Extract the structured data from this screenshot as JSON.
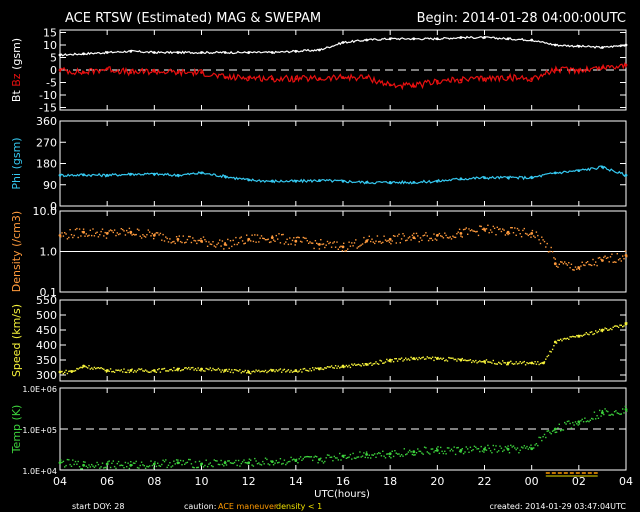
{
  "header": {
    "title": "ACE RTSW (Estimated) MAG & SWEPAM",
    "begin": "Begin: 2014-01-28 04:00:00UTC"
  },
  "footer": {
    "start_doy": "start DOY:  28",
    "caution_label": "caution:",
    "caution_ace": "ACE maneuver",
    "caution_density": "density < 1",
    "created": "created: 2014-01-29 03:47:04UTC",
    "xlabel": "UTC(hours)"
  },
  "colors": {
    "bt": "#ffffff",
    "bz": "#e81010",
    "phi": "#35c8f0",
    "density": "#ff9a3c",
    "speed": "#f6f23a",
    "temp": "#3cd23c",
    "axis": "#ffffff",
    "caution_orange": "#ff9a00",
    "caution_yellow": "#f0e000"
  },
  "chart_data": [
    {
      "type": "line",
      "panel": "mag",
      "ylabel_parts": [
        "Bt",
        " Bz",
        " (gsm)"
      ],
      "ylim": [
        -16,
        16
      ],
      "yticks": [
        -15,
        -10,
        -5,
        0,
        5,
        10,
        15
      ],
      "ytick_labels": [
        "-15",
        "-10",
        "-5",
        "0",
        "5",
        "10",
        "15"
      ],
      "zero_dash": 0,
      "series": [
        {
          "name": "Bt",
          "x": [
            0,
            1,
            2,
            3,
            4,
            5,
            6,
            7,
            8,
            9,
            10,
            11,
            12,
            13,
            14,
            15,
            16,
            17,
            18,
            19,
            20,
            21,
            22,
            23,
            24
          ],
          "values": [
            6,
            6.5,
            7,
            7.5,
            7,
            7,
            7,
            7,
            7,
            7,
            7.5,
            8,
            11,
            12,
            12.5,
            12.5,
            12.5,
            13,
            13,
            12.5,
            12,
            10,
            9.5,
            9,
            10
          ]
        },
        {
          "name": "Bz",
          "x": [
            0,
            1,
            2,
            3,
            4,
            5,
            6,
            7,
            8,
            9,
            10,
            11,
            12,
            13,
            14,
            15,
            16,
            17,
            18,
            19,
            20,
            21,
            22,
            23,
            24
          ],
          "values": [
            0,
            -1,
            0.5,
            -1,
            -0.5,
            -1,
            -1,
            -3,
            -3,
            -3.5,
            -3.5,
            -3.5,
            -3,
            -3,
            -6,
            -6.5,
            -4.5,
            -4,
            -3.5,
            -3,
            -3.5,
            0,
            0,
            1,
            2
          ]
        }
      ]
    },
    {
      "type": "line",
      "panel": "phi",
      "ylabel": "Phi (gsm)",
      "ylim": [
        0,
        360
      ],
      "yticks": [
        0,
        90,
        180,
        270,
        360
      ],
      "ytick_labels": [
        "0",
        "90",
        "180",
        "270",
        "360"
      ],
      "series": [
        {
          "name": "Phi",
          "x": [
            0,
            1,
            2,
            3,
            4,
            5,
            6,
            7,
            8,
            9,
            10,
            11,
            12,
            13,
            14,
            15,
            16,
            17,
            18,
            19,
            20,
            21,
            22,
            23,
            24
          ],
          "values": [
            130,
            132,
            130,
            135,
            135,
            130,
            140,
            125,
            110,
            105,
            105,
            108,
            105,
            100,
            100,
            100,
            105,
            115,
            120,
            120,
            120,
            140,
            150,
            165,
            130
          ]
        }
      ]
    },
    {
      "type": "scatter",
      "panel": "density",
      "ylabel": "Density (/cm3)",
      "yscale": "log",
      "ylim": [
        0.1,
        10
      ],
      "ytick_labels": [
        "0.1",
        "1.0",
        "10.0"
      ],
      "reference_line": 1.0,
      "series": [
        {
          "name": "Density",
          "x": [
            0,
            1,
            2,
            3,
            4,
            5,
            6,
            7,
            8,
            9,
            10,
            11,
            12,
            13,
            14,
            15,
            16,
            17,
            18,
            19,
            20,
            21,
            22,
            23,
            24
          ],
          "values": [
            2.5,
            3,
            2.8,
            3,
            2.5,
            2,
            1.8,
            1.5,
            2,
            2.2,
            1.8,
            1.5,
            1.3,
            1.8,
            2,
            2.2,
            2.5,
            2.8,
            3.5,
            3,
            2.8,
            0.5,
            0.4,
            0.6,
            0.8
          ]
        }
      ]
    },
    {
      "type": "scatter",
      "panel": "speed",
      "ylabel": "Speed (km/s)",
      "ylim": [
        280,
        550
      ],
      "yticks": [
        300,
        350,
        400,
        450,
        500,
        550
      ],
      "ytick_labels": [
        "300",
        "350",
        "400",
        "450",
        "500",
        "550"
      ],
      "series": [
        {
          "name": "Speed",
          "x": [
            0,
            0.5,
            1,
            2,
            3,
            4,
            5,
            6,
            7,
            8,
            9,
            10,
            11,
            12,
            13,
            14,
            15,
            16,
            17,
            18,
            19,
            20,
            20.5,
            21,
            22,
            23,
            24
          ],
          "values": [
            310,
            312,
            330,
            315,
            315,
            315,
            320,
            320,
            315,
            310,
            315,
            315,
            320,
            330,
            335,
            350,
            355,
            355,
            350,
            345,
            340,
            340,
            340,
            410,
            430,
            450,
            470
          ]
        }
      ]
    },
    {
      "type": "scatter",
      "panel": "temp",
      "ylabel": "Temp (K)",
      "yscale": "log",
      "ylim": [
        10000,
        1000000
      ],
      "ytick_labels": [
        "1.0E+04",
        "1.0E+05",
        "1.0E+06"
      ],
      "reference_line": 100000,
      "series": [
        {
          "name": "Temp",
          "x": [
            0,
            1,
            2,
            3,
            4,
            5,
            6,
            7,
            8,
            9,
            10,
            11,
            12,
            13,
            14,
            15,
            16,
            17,
            18,
            19,
            20,
            21,
            22,
            23,
            24
          ],
          "values": [
            15000,
            13000,
            14000,
            13000,
            14000,
            15000,
            14000,
            15000,
            15000,
            16000,
            17000,
            18000,
            22000,
            24000,
            25000,
            28000,
            30000,
            30000,
            32000,
            32000,
            33000,
            100000,
            150000,
            250000,
            300000
          ]
        }
      ]
    }
  ],
  "xaxis": {
    "range": [
      0,
      24
    ],
    "tick_labels": [
      "04",
      "06",
      "08",
      "10",
      "12",
      "14",
      "16",
      "18",
      "20",
      "22",
      "00",
      "02",
      "04"
    ]
  }
}
